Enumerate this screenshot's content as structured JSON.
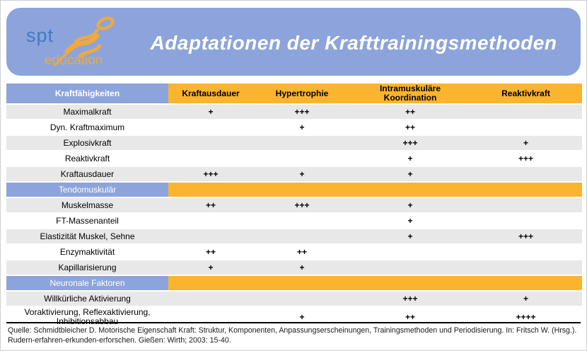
{
  "slide": {
    "logo": {
      "spt": "spt",
      "education": "education"
    },
    "title": "Adaptationen der Krafttrainingsmethoden"
  },
  "table": {
    "columns": [
      "Kraftfähigkeiten",
      "Kraftausdauer",
      "Hypertrophie",
      "Intramuskuläre Koordination",
      "Reaktivkraft"
    ],
    "rows": [
      {
        "type": "data",
        "label": "Maximalkraft",
        "values": [
          "+",
          "+++",
          "++",
          ""
        ]
      },
      {
        "type": "data",
        "label": "Dyn. Kraftmaximum",
        "values": [
          "",
          "+",
          "++",
          ""
        ]
      },
      {
        "type": "data",
        "label": "Explosivkraft",
        "values": [
          "",
          "",
          "+++",
          "+"
        ]
      },
      {
        "type": "data",
        "label": "Reaktivkraft",
        "values": [
          "",
          "",
          "+",
          "+++"
        ]
      },
      {
        "type": "data",
        "label": "Kraftausdauer",
        "values": [
          "+++",
          "+",
          "+",
          ""
        ]
      },
      {
        "type": "section",
        "label": "Tendomuskulär"
      },
      {
        "type": "data",
        "label": "Muskelmasse",
        "values": [
          "++",
          "+++",
          "+",
          ""
        ]
      },
      {
        "type": "data",
        "label": "FT-Massenanteil",
        "values": [
          "",
          "",
          "+",
          ""
        ]
      },
      {
        "type": "data",
        "label": "Elastizität Muskel, Sehne",
        "values": [
          "",
          "",
          "+",
          "+++"
        ]
      },
      {
        "type": "data",
        "label": "Enzymaktivität",
        "values": [
          "++",
          "++",
          "",
          ""
        ]
      },
      {
        "type": "data",
        "label": "Kapillarisierung",
        "values": [
          "+",
          "+",
          "",
          ""
        ]
      },
      {
        "type": "section",
        "label": "Neuronale Faktoren"
      },
      {
        "type": "data",
        "label": "Willkürliche Aktivierung",
        "values": [
          "",
          "",
          "+++",
          "+"
        ]
      },
      {
        "type": "data",
        "label": "Voraktivierung, Reflexaktivierung, Inhibitionsabbau",
        "values": [
          "",
          "+",
          "++",
          "++++"
        ]
      }
    ]
  },
  "footer": {
    "citation": "Quelle: Schmidtbleicher D. Motorische Eigenschaft Kraft: Struktur, Komponenten, Anpassungserscheinungen, Trainingsmethoden und Periodisierung. In: Fritsch W. (Hrsg.). Rudern-erfahren-erkunden-erforschen. Gießen: Wirth; 2003: 15-40."
  },
  "colors": {
    "band_blue": "#8CA4DB",
    "header_orange": "#FBB42D",
    "row_gray": "#E8E8E8",
    "logo_blue": "#3E7CC1",
    "logo_orange": "#EFA93D"
  }
}
